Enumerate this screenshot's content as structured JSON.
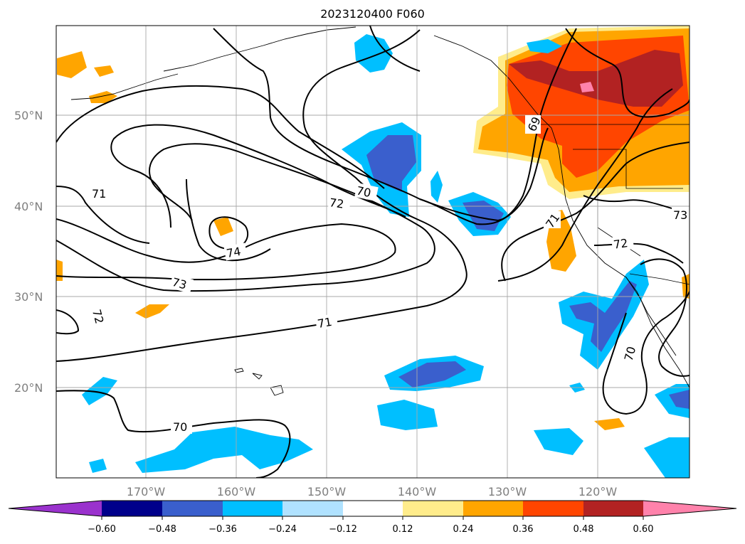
{
  "map": {
    "title": "2023120400 F060",
    "lat_labels": [
      "50°N",
      "40°N",
      "30°N",
      "20°N"
    ],
    "lon_labels": [
      "170°W",
      "160°W",
      "150°W",
      "140°W",
      "130°W",
      "120°W"
    ],
    "contour_labels": [
      "71",
      "72",
      "70",
      "74",
      "73",
      "72",
      "71",
      "70",
      "69",
      "71",
      "72",
      "73",
      "70"
    ]
  },
  "colorbar": {
    "tick_labels": [
      "−0.60",
      "−0.48",
      "−0.36",
      "−0.24",
      "−0.12",
      "0.12",
      "0.24",
      "0.36",
      "0.48",
      "0.60"
    ],
    "colors": [
      "#9a32cd",
      "#00008b",
      "#3a5fcd",
      "#00bfff",
      "#b0e2ff",
      "#ffffff",
      "#ffec8b",
      "#ffa500",
      "#ff4500",
      "#b22222",
      "#ff82ab"
    ]
  },
  "colors": {
    "grid": "#a9a9a9",
    "contour": "#000000",
    "label_gray": "#7f7f7f"
  }
}
